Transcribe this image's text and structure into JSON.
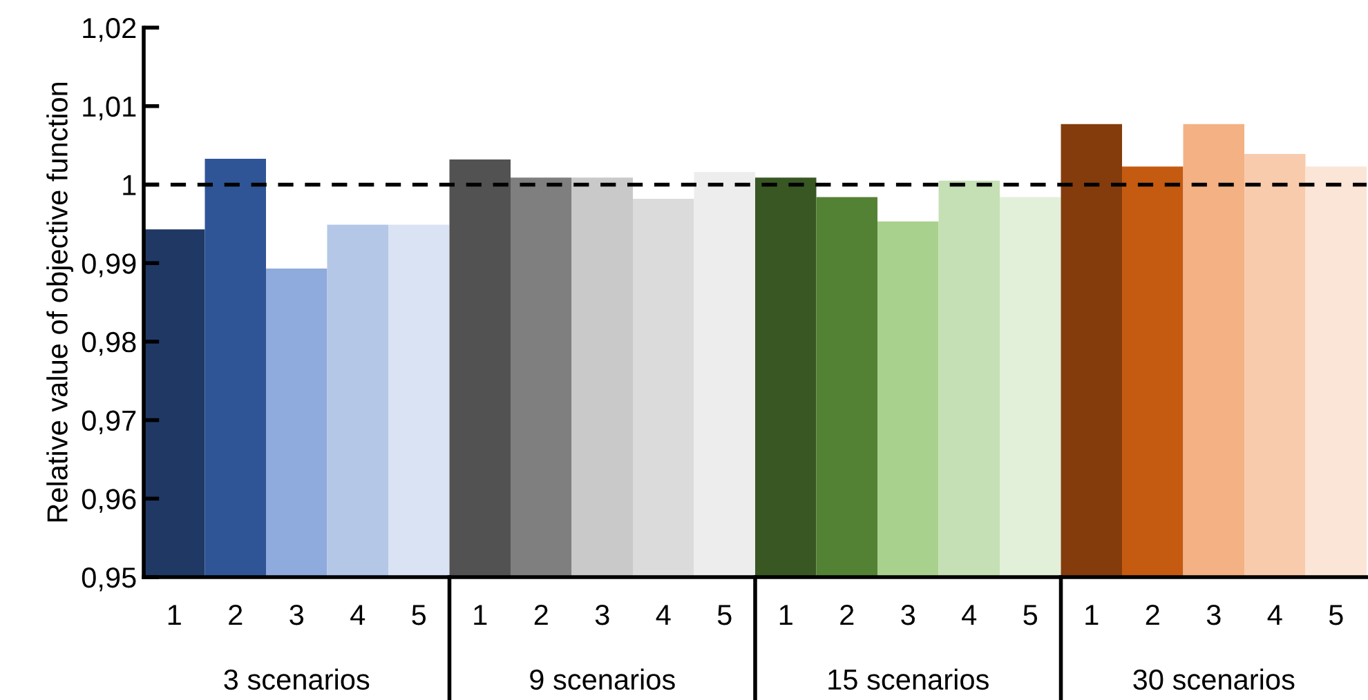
{
  "chart_data": {
    "type": "bar",
    "ylabel": "Relative value of objective function",
    "categories": [
      "1",
      "2",
      "3",
      "4",
      "5",
      "1",
      "2",
      "3",
      "4",
      "5",
      "1",
      "2",
      "3",
      "4",
      "5",
      "1",
      "2",
      "3",
      "4",
      "5"
    ],
    "values": [
      0.9943,
      1.0033,
      0.9893,
      0.9949,
      0.9949,
      1.0032,
      1.0009,
      1.0009,
      0.9982,
      1.0016,
      1.0009,
      0.9984,
      0.9953,
      1.0005,
      0.9984,
      1.0077,
      1.0023,
      1.0077,
      1.0039,
      1.0023
    ],
    "colors": [
      "#203864",
      "#2f5597",
      "#8faadc",
      "#b4c7e7",
      "#dae3f3",
      "#525252",
      "#7f7f7f",
      "#c9c9c9",
      "#dbdbdb",
      "#ededed",
      "#385723",
      "#548235",
      "#a9d18e",
      "#c5e0b4",
      "#e2f0d9",
      "#843c0c",
      "#c55a11",
      "#f4b183",
      "#f8cbad",
      "#fbe5d6"
    ],
    "annotations": [
      "3 scenarios",
      "9 scenarios",
      "15 scenarios",
      "30 scenarios"
    ],
    "ylim": [
      0.95,
      1.02
    ],
    "yticks": [
      {
        "value": 0.95,
        "label": "0,95"
      },
      {
        "value": 0.96,
        "label": "0,96"
      },
      {
        "value": 0.97,
        "label": "0,97"
      },
      {
        "value": 0.98,
        "label": "0,98"
      },
      {
        "value": 0.99,
        "label": "0,99"
      },
      1,
      {
        "value": 1.01,
        "label": "1,01"
      },
      {
        "value": 1.02,
        "label": "1,02"
      }
    ],
    "ref_lines": [
      {
        "axis": "y",
        "value": 1,
        "color": "#000000",
        "line_style": "dashed"
      }
    ],
    "grid": false,
    "legend": false
  }
}
